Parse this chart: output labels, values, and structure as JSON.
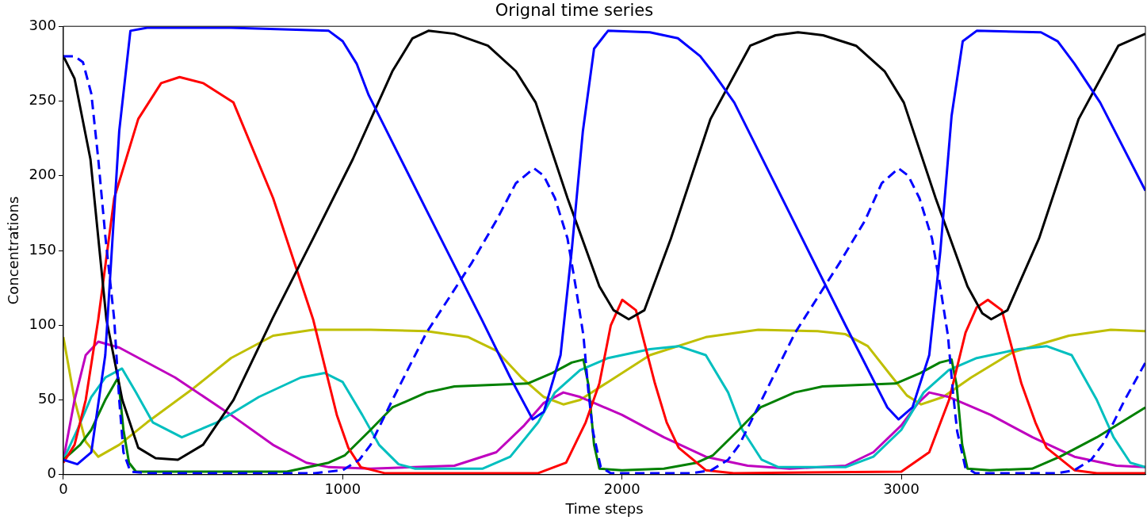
{
  "chart_data": {
    "type": "line",
    "title": "Orignal time series",
    "xlabel": "Time steps",
    "ylabel": "Concentrations",
    "xlim": [
      0,
      3874
    ],
    "ylim": [
      0,
      300
    ],
    "xticks": [
      0,
      1000,
      2000,
      3000
    ],
    "yticks": [
      0,
      50,
      100,
      150,
      200,
      250,
      300
    ],
    "grid": false,
    "legend": false,
    "marker": "none",
    "line_style": "solid",
    "series": [
      {
        "color": "#0000ff",
        "x": [
          0,
          50,
          100,
          150,
          200,
          240,
          300,
          600,
          950,
          1000,
          1050,
          1093,
          1300,
          1500,
          1600,
          1680,
          1720,
          1780,
          1820,
          1860,
          1900,
          1950,
          2100,
          2200,
          2280,
          2330,
          2402,
          2600,
          2800,
          2950,
          2990,
          3040,
          3100,
          3140,
          3180,
          3220,
          3270,
          3500,
          3560,
          3620,
          3712,
          3874
        ],
        "values": [
          10,
          7,
          15,
          80,
          230,
          297,
          299,
          299,
          297,
          290,
          275,
          254,
          177,
          103,
          65,
          37,
          42,
          80,
          150,
          230,
          285,
          297,
          296,
          292,
          280,
          268,
          249,
          175,
          100,
          45,
          37,
          45,
          80,
          150,
          240,
          290,
          297,
          296,
          290,
          275,
          249,
          190
        ]
      },
      {
        "color": "#0000ff",
        "line_style": "dashed",
        "x": [
          0,
          40,
          70,
          100,
          125,
          150,
          182,
          200,
          215,
          240,
          300,
          900,
          1000,
          1060,
          1100,
          1178,
          1300,
          1463,
          1550,
          1620,
          1685,
          1720,
          1760,
          1805,
          1835,
          1862,
          1880,
          1896,
          1924,
          1960,
          2250,
          2320,
          2380,
          2420,
          2500,
          2620,
          2780,
          2870,
          2930,
          2990,
          3025,
          3065,
          3110,
          3140,
          3167,
          3185,
          3200,
          3229,
          3265,
          3560,
          3620,
          3680,
          3720,
          3800,
          3874
        ],
        "values": [
          280,
          280,
          276,
          255,
          211,
          160,
          104,
          50,
          15,
          2,
          1,
          1,
          3,
          10,
          20,
          50,
          95,
          142,
          170,
          195,
          205,
          200,
          185,
          158,
          125,
          93,
          55,
          29,
          5,
          1,
          1,
          3,
          10,
          20,
          50,
          95,
          142,
          170,
          195,
          205,
          200,
          185,
          158,
          125,
          93,
          55,
          29,
          5,
          1,
          1,
          3,
          10,
          20,
          50,
          75
        ]
      },
      {
        "color": "#000000",
        "x": [
          0,
          40,
          97,
          154,
          211,
          268,
          330,
          410,
          500,
          609,
          750,
          894,
          1036,
          1178,
          1250,
          1307,
          1400,
          1520,
          1620,
          1691,
          1805,
          1919,
          1970,
          2024,
          2080,
          2175,
          2317,
          2459,
          2550,
          2630,
          2720,
          2838,
          2940,
          3009,
          3123,
          3237,
          3290,
          3322,
          3380,
          3493,
          3635,
          3777,
          3874
        ],
        "values": [
          280,
          265,
          211,
          104,
          50,
          18,
          11,
          10,
          20,
          50,
          105,
          158,
          211,
          270,
          292,
          297,
          295,
          287,
          270,
          249,
          185,
          126,
          110,
          104,
          110,
          158,
          238,
          287,
          294,
          296,
          294,
          287,
          270,
          249,
          185,
          126,
          108,
          104,
          110,
          158,
          238,
          287,
          295
        ]
      },
      {
        "color": "#ff0000",
        "x": [
          0,
          40,
          80,
          125,
          182,
          268,
          350,
          416,
          500,
          609,
          751,
          894,
          979,
          1020,
          1065,
          1150,
          1700,
          1800,
          1870,
          1919,
          1960,
          2001,
          2050,
          2118,
          2160,
          2203,
          2300,
          2400,
          3000,
          3100,
          3171,
          3230,
          3270,
          3310,
          3360,
          3430,
          3480,
          3520,
          3620,
          3700,
          3874
        ],
        "values": [
          8,
          20,
          50,
          104,
          185,
          238,
          262,
          266,
          262,
          249,
          185,
          104,
          40,
          18,
          5,
          1,
          1,
          8,
          35,
          61,
          100,
          117,
          110,
          61,
          35,
          18,
          3,
          1,
          2,
          15,
          50,
          95,
          112,
          117,
          110,
          61,
          35,
          18,
          3,
          1,
          1
        ]
      },
      {
        "color": "#008000",
        "x": [
          0,
          60,
          100,
          150,
          196,
          215,
          235,
          260,
          800,
          950,
          1008,
          1100,
          1178,
          1300,
          1400,
          1520,
          1662,
          1750,
          1820,
          1862,
          1880,
          1900,
          1919,
          2000,
          2150,
          2268,
          2326,
          2418,
          2496,
          2618,
          2718,
          2838,
          2980,
          3068,
          3138,
          3180,
          3198,
          3218,
          3237,
          3318,
          3468,
          3568,
          3700,
          3874
        ],
        "values": [
          10,
          20,
          30,
          50,
          65,
          30,
          8,
          2,
          2,
          8,
          13,
          30,
          45,
          55,
          59,
          60,
          61,
          68,
          75,
          77,
          60,
          20,
          4,
          3,
          4,
          8,
          13,
          30,
          45,
          55,
          59,
          60,
          61,
          68,
          75,
          77,
          60,
          20,
          4,
          3,
          4,
          12,
          25,
          45
        ]
      },
      {
        "color": "#00bfbf",
        "x": [
          0,
          50,
          100,
          150,
          210,
          260,
          320,
          424,
          550,
          700,
          850,
          936,
          1000,
          1070,
          1130,
          1200,
          1260,
          1500,
          1600,
          1700,
          1760,
          1850,
          1950,
          2100,
          2203,
          2300,
          2380,
          2431,
          2500,
          2560,
          2800,
          2900,
          3000,
          3080,
          3170,
          3270,
          3420,
          3520,
          3610,
          3700,
          3760,
          3820,
          3874
        ],
        "values": [
          10,
          30,
          52,
          65,
          71,
          55,
          35,
          25,
          35,
          52,
          65,
          68,
          62,
          40,
          20,
          7,
          4,
          4,
          12,
          35,
          55,
          70,
          78,
          84,
          86,
          80,
          55,
          30,
          10,
          5,
          5,
          12,
          30,
          55,
          70,
          78,
          84,
          86,
          80,
          50,
          25,
          8,
          5
        ]
      },
      {
        "color": "#bf00bf",
        "x": [
          0,
          40,
          80,
          125,
          200,
          400,
          600,
          750,
          870,
          951,
          1100,
          1400,
          1550,
          1650,
          1720,
          1790,
          1850,
          2000,
          2150,
          2300,
          2450,
          2600,
          2800,
          2900,
          3000,
          3060,
          3100,
          3170,
          3320,
          3470,
          3620,
          3770,
          3874
        ],
        "values": [
          10,
          50,
          80,
          89,
          85,
          65,
          40,
          20,
          8,
          5,
          4,
          6,
          15,
          33,
          48,
          55,
          52,
          40,
          25,
          12,
          6,
          4,
          6,
          15,
          33,
          48,
          55,
          52,
          40,
          25,
          12,
          6,
          5
        ]
      },
      {
        "color": "#bfbf00",
        "x": [
          0,
          40,
          80,
          125,
          200,
          300,
          467,
          600,
          751,
          894,
          1100,
          1300,
          1450,
          1550,
          1640,
          1720,
          1790,
          1850,
          1950,
          2100,
          2300,
          2488,
          2700,
          2800,
          2880,
          2960,
          3020,
          3071,
          3150,
          3250,
          3400,
          3600,
          3750,
          3874
        ],
        "values": [
          92,
          50,
          22,
          12,
          20,
          35,
          58,
          78,
          93,
          97,
          97,
          96,
          92,
          83,
          65,
          52,
          47,
          50,
          62,
          80,
          92,
          97,
          96,
          94,
          86,
          67,
          53,
          47,
          52,
          65,
          82,
          93,
          97,
          96
        ]
      }
    ]
  }
}
